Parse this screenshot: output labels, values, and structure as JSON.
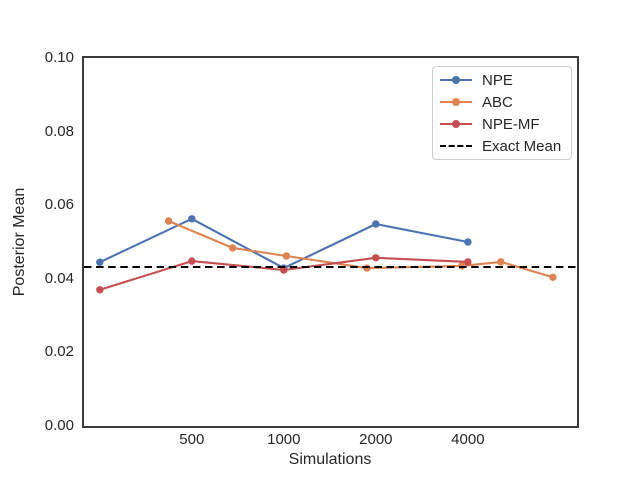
{
  "figure": {
    "background": "#ffffff",
    "spine_color": "#3a3a3a",
    "text_color": "#262626",
    "legend_border_color": "#cccccc"
  },
  "chart_data": {
    "type": "line",
    "title": "",
    "xlabel": "Simulations",
    "ylabel": "Posterior Mean",
    "xscale": "log",
    "xlim": [
      222,
      9100
    ],
    "ylim": [
      0.0,
      0.1
    ],
    "x_ticks": [
      {
        "value": 500,
        "label": "500"
      },
      {
        "value": 1000,
        "label": "1000"
      },
      {
        "value": 2000,
        "label": "2000"
      },
      {
        "value": 4000,
        "label": "4000"
      }
    ],
    "y_ticks": [
      {
        "value": 0.0,
        "label": "0.00"
      },
      {
        "value": 0.02,
        "label": "0.02"
      },
      {
        "value": 0.04,
        "label": "0.04"
      },
      {
        "value": 0.06,
        "label": "0.06"
      },
      {
        "value": 0.08,
        "label": "0.08"
      },
      {
        "value": 0.1,
        "label": "0.10"
      }
    ],
    "grid": false,
    "legend_position": "upper right",
    "series": [
      {
        "name": "NPE",
        "color": "#4C72B0",
        "style": "solid",
        "marker": "circle",
        "x": [
          250,
          500,
          1000,
          2000,
          4000
        ],
        "y": [
          0.0445,
          0.0563,
          0.0429,
          0.0549,
          0.05
        ]
      },
      {
        "name": "ABC",
        "color": "#DD8452",
        "style": "solid",
        "marker": "circle",
        "x": [
          420,
          680,
          1020,
          1870,
          3820,
          5130,
          7590
        ],
        "y": [
          0.0557,
          0.0484,
          0.0462,
          0.0429,
          0.0435,
          0.0446,
          0.0404
        ]
      },
      {
        "name": "NPE-MF",
        "color": "#C44E52",
        "style": "solid",
        "marker": "circle",
        "x": [
          250,
          500,
          1000,
          2000,
          4000
        ],
        "y": [
          0.037,
          0.0448,
          0.0424,
          0.0457,
          0.0446
        ]
      }
    ],
    "reference_line": {
      "name": "Exact Mean",
      "value": 0.0432,
      "color": "#000000",
      "style": "dashed"
    }
  }
}
